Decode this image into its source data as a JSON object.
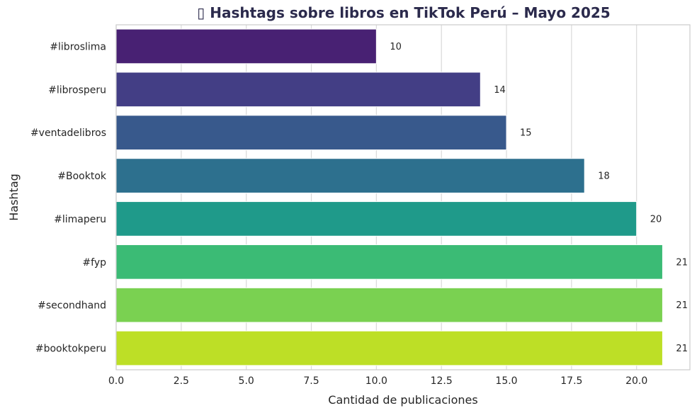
{
  "chart_data": {
    "type": "bar",
    "orientation": "horizontal",
    "title": "▯ Hashtags sobre libros en TikTok Perú – Mayo 2025",
    "xlabel": "Cantidad de publicaciones",
    "ylabel": "Hashtag",
    "categories": [
      "#libroslima",
      "#librosperu",
      "#ventadelibros",
      "#Booktok",
      "#limaperu",
      "#fyp",
      "#secondhand",
      "#booktokperu"
    ],
    "values": [
      10,
      14,
      15,
      18,
      20,
      21,
      21,
      21
    ],
    "data_labels": [
      "10",
      "14",
      "15",
      "18",
      "20",
      "21",
      "21",
      "21"
    ],
    "xlim": [
      0,
      22.05
    ],
    "xticks": [
      0,
      2.5,
      5,
      7.5,
      10,
      12.5,
      15,
      17.5,
      20
    ],
    "xtick_labels": [
      "0.0",
      "2.5",
      "5.0",
      "7.5",
      "10.0",
      "12.5",
      "15.0",
      "17.5",
      "20.0"
    ],
    "grid": "vertical",
    "colors": [
      "#482173",
      "#433e85",
      "#38598c",
      "#2d708e",
      "#1f9a8a",
      "#3bbb75",
      "#7ad151",
      "#bddf26"
    ]
  }
}
